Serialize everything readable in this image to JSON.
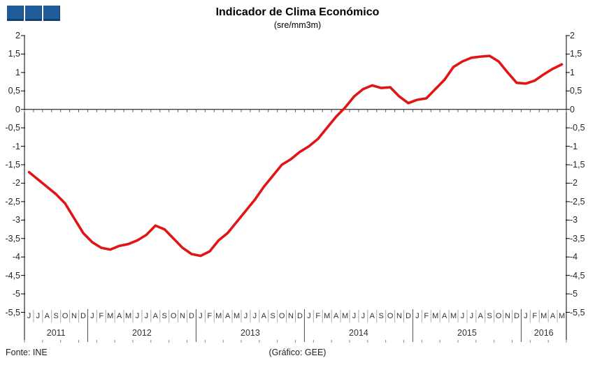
{
  "header": {
    "title": "Indicador de Clima Económico",
    "subtitle": "(sre/mm3m)",
    "logo_color": "#1e5c9b",
    "logo_squares": 3
  },
  "footer": {
    "source": "Fonte: INE",
    "credit": "(Gráfico: GEE)"
  },
  "chart_data": {
    "type": "line",
    "title": "Indicador de Clima Económico",
    "subtitle": "(sre/mm3m)",
    "xlabel": "",
    "ylabel": "",
    "ylim": [
      -5.5,
      2
    ],
    "y_tick_step": 0.5,
    "y_tick_labels": [
      "2",
      "1,5",
      "1",
      "0,5",
      "0",
      "-0,5",
      "-1",
      "-1,5",
      "-2",
      "-2,5",
      "-3",
      "-3,5",
      "-4",
      "-4,5",
      "-5",
      "-5,5"
    ],
    "grid": false,
    "legend": "none",
    "line_color": "#e01616",
    "axis_color": "#000000",
    "month_separator_color": "#ababab",
    "year_separator_color": "#4d4d4d",
    "year_groups": [
      {
        "year": "2011",
        "months": [
          "J",
          "J",
          "A",
          "S",
          "O",
          "N",
          "D"
        ]
      },
      {
        "year": "2012",
        "months": [
          "J",
          "F",
          "M",
          "A",
          "M",
          "J",
          "J",
          "A",
          "S",
          "O",
          "N",
          "D"
        ]
      },
      {
        "year": "2013",
        "months": [
          "J",
          "F",
          "M",
          "A",
          "M",
          "J",
          "J",
          "A",
          "S",
          "O",
          "N",
          "D"
        ]
      },
      {
        "year": "2014",
        "months": [
          "J",
          "F",
          "M",
          "A",
          "M",
          "J",
          "J",
          "A",
          "S",
          "O",
          "N",
          "D"
        ]
      },
      {
        "year": "2015",
        "months": [
          "J",
          "F",
          "M",
          "A",
          "M",
          "J",
          "J",
          "A",
          "S",
          "O",
          "N",
          "D"
        ]
      },
      {
        "year": "2016",
        "months": [
          "J",
          "F",
          "M",
          "A",
          "M"
        ]
      }
    ],
    "series": [
      {
        "name": "Indicador de Clima Económico",
        "values": [
          -1.7,
          -1.9,
          -2.1,
          -2.3,
          -2.55,
          -2.95,
          -3.35,
          -3.6,
          -3.75,
          -3.8,
          -3.7,
          -3.65,
          -3.55,
          -3.4,
          -3.15,
          -3.25,
          -3.5,
          -3.75,
          -3.92,
          -3.97,
          -3.85,
          -3.55,
          -3.35,
          -3.05,
          -2.75,
          -2.45,
          -2.1,
          -1.8,
          -1.5,
          -1.35,
          -1.15,
          -1.0,
          -0.8,
          -0.5,
          -0.2,
          0.05,
          0.35,
          0.55,
          0.65,
          0.58,
          0.6,
          0.35,
          0.17,
          0.26,
          0.3,
          0.55,
          0.8,
          1.15,
          1.3,
          1.4,
          1.43,
          1.45,
          1.3,
          1.0,
          0.72,
          0.7,
          0.78,
          0.95,
          1.1,
          1.22
        ]
      }
    ]
  }
}
